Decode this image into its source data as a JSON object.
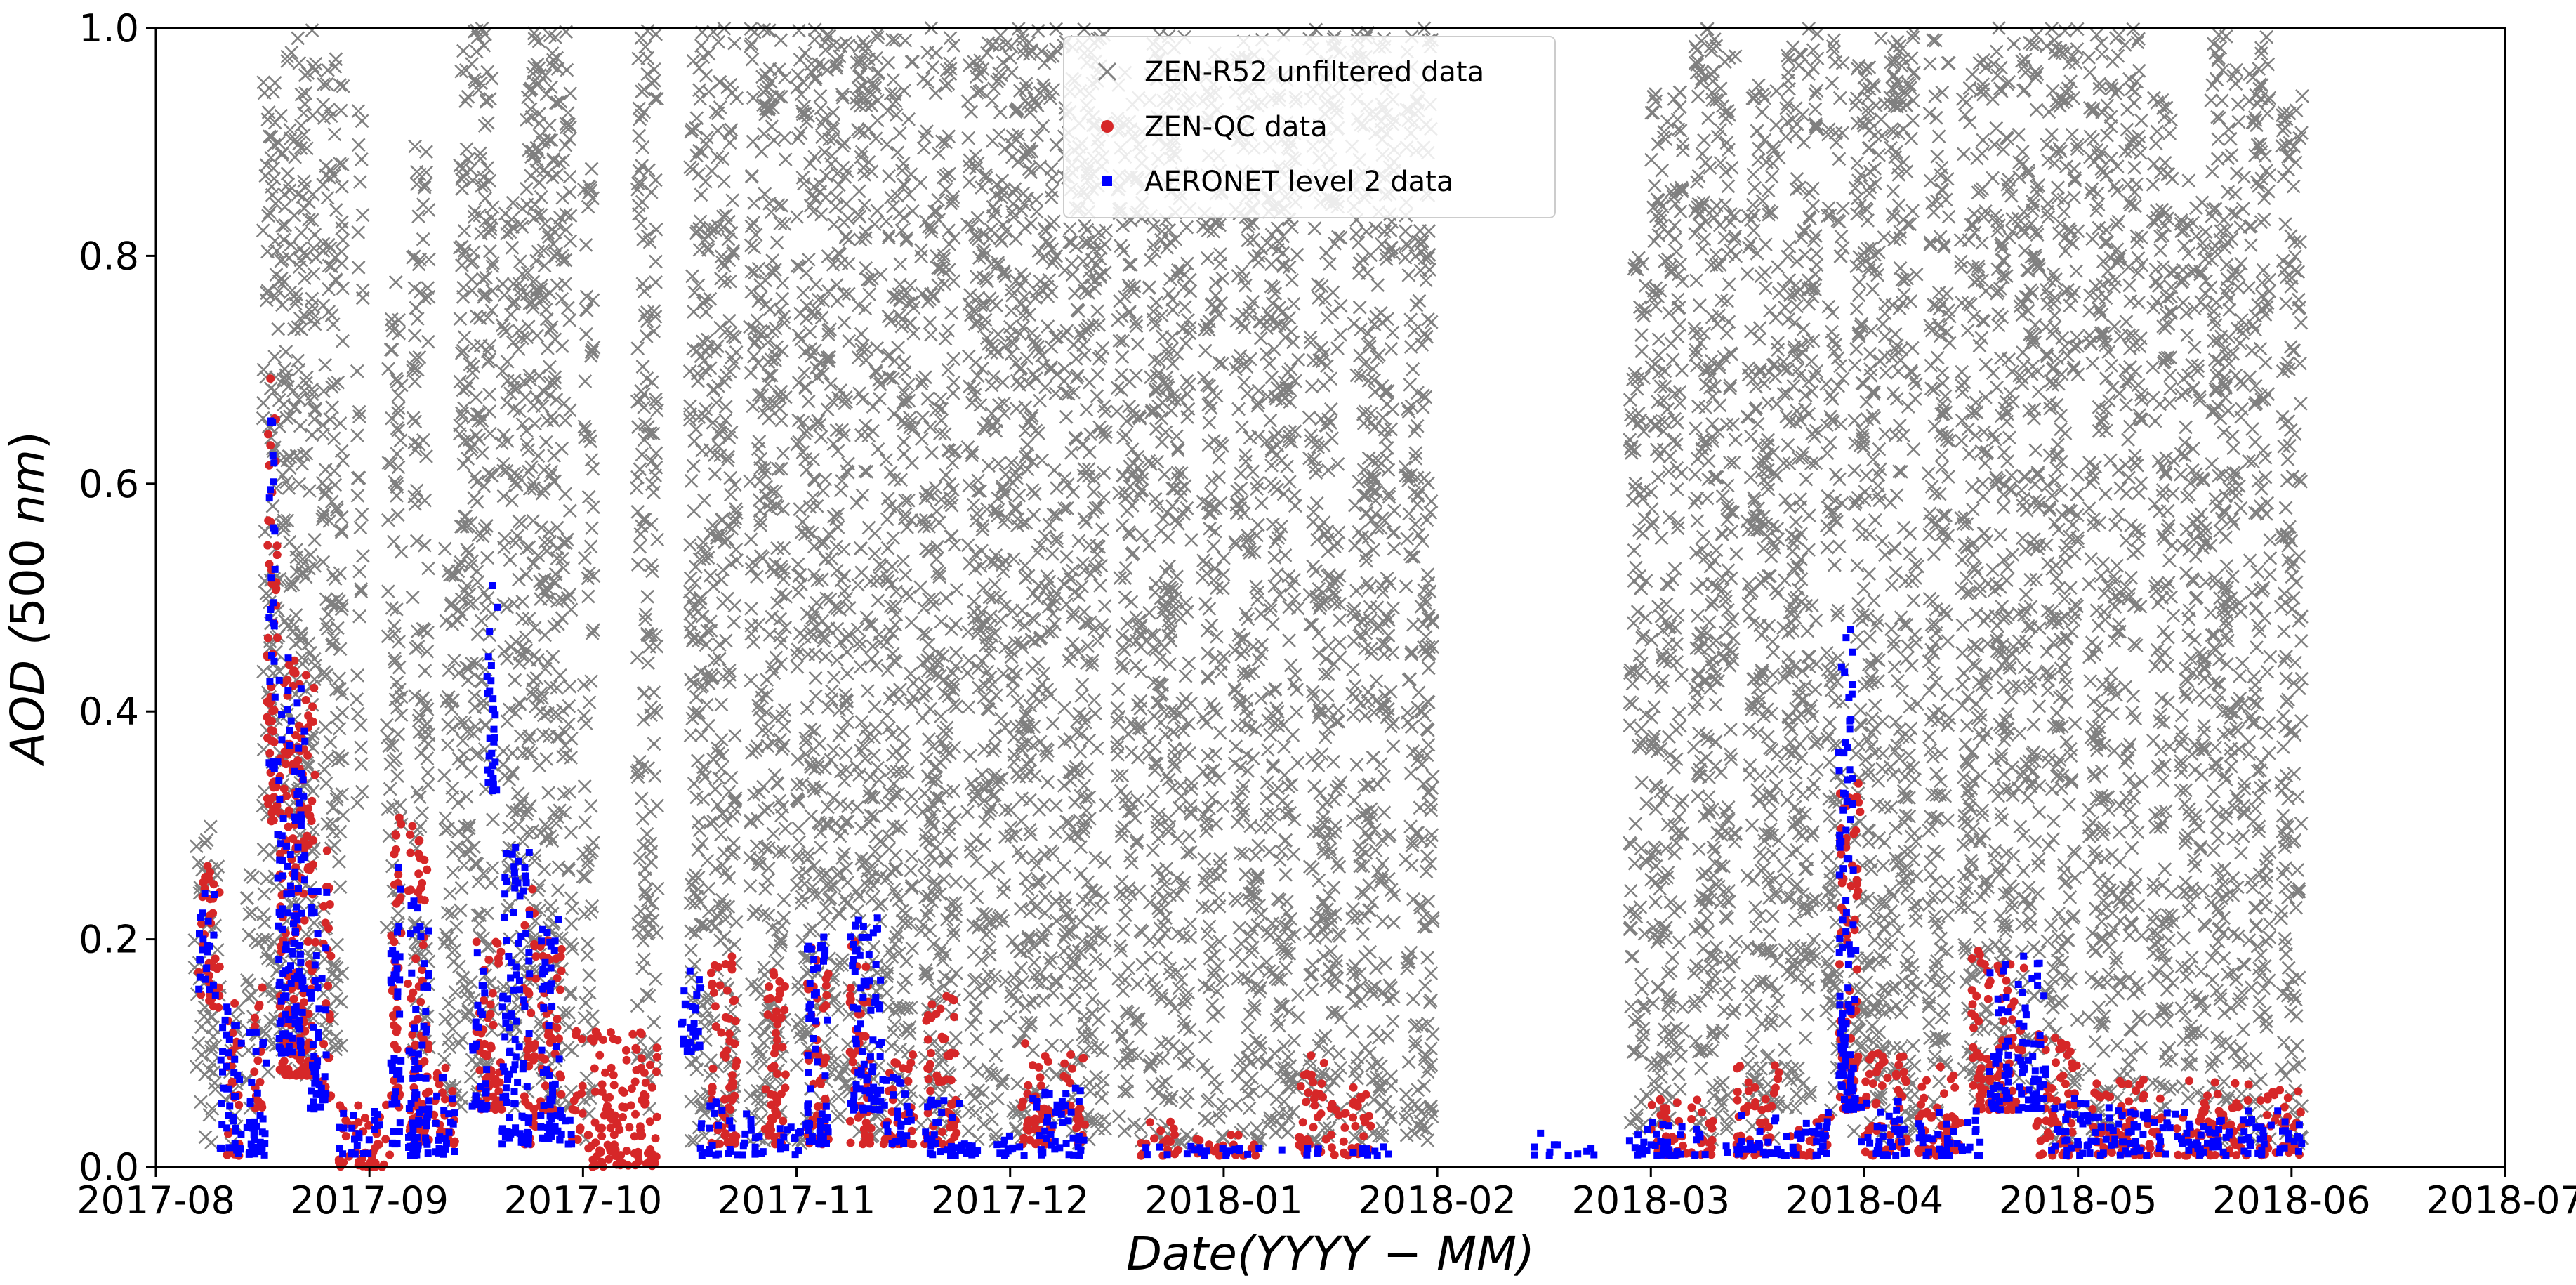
{
  "chart_data": {
    "type": "scatter",
    "title": "",
    "xlabel": "Date(YYYY − MM)",
    "ylabel": "AOD (500 nm)",
    "xlim": [
      "2017-08",
      "2018-07"
    ],
    "ylim": [
      0,
      1.0
    ],
    "x_tick_labels": [
      "2017-08",
      "2017-09",
      "2017-10",
      "2017-11",
      "2017-12",
      "2018-01",
      "2018-02",
      "2018-03",
      "2018-04",
      "2018-05",
      "2018-06",
      "2018-07"
    ],
    "y_tick_labels": [
      "0.0",
      "0.2",
      "0.4",
      "0.6",
      "0.8",
      "1.0"
    ],
    "grid": false,
    "legend_position": "top-center",
    "series": [
      {
        "name": "ZEN-R52 unfiltered data",
        "marker": "x",
        "color": "#808080",
        "note": "dense vertical bands per day; values given as [month_offset_start, month_offset_end, ymin, ymax]",
        "bands": [
          [
            0.18,
            0.3,
            0.02,
            0.3
          ],
          [
            0.33,
            0.4,
            0.02,
            0.14
          ],
          [
            0.42,
            0.48,
            0.05,
            0.26
          ],
          [
            0.5,
            0.58,
            0.08,
            0.96
          ],
          [
            0.58,
            0.75,
            0.08,
            1.0
          ],
          [
            0.78,
            0.88,
            0.1,
            1.0
          ],
          [
            0.94,
            0.97,
            0.3,
            0.93
          ],
          [
            1.08,
            1.15,
            0.2,
            0.8
          ],
          [
            1.2,
            1.28,
            0.1,
            0.9
          ],
          [
            1.35,
            1.42,
            0.05,
            0.55
          ],
          [
            1.42,
            1.58,
            0.05,
            1.0
          ],
          [
            1.62,
            1.72,
            0.05,
            0.85
          ],
          [
            1.73,
            1.95,
            0.05,
            1.0
          ],
          [
            2.0,
            2.05,
            0.02,
            0.88
          ],
          [
            2.25,
            2.35,
            0.05,
            1.0
          ],
          [
            2.5,
            2.72,
            0.02,
            1.0
          ],
          [
            2.78,
            2.95,
            0.02,
            1.0
          ],
          [
            3.0,
            3.25,
            0.02,
            1.0
          ],
          [
            3.28,
            3.4,
            0.02,
            1.0
          ],
          [
            3.42,
            3.55,
            0.05,
            1.0
          ],
          [
            3.58,
            3.75,
            0.02,
            1.0
          ],
          [
            3.8,
            3.98,
            0.02,
            1.0
          ],
          [
            4.0,
            4.22,
            0.02,
            1.0
          ],
          [
            4.25,
            4.45,
            0.02,
            1.0
          ],
          [
            4.5,
            4.62,
            0.02,
            1.0
          ],
          [
            4.65,
            4.85,
            0.02,
            1.0
          ],
          [
            4.9,
            5.0,
            0.02,
            1.0
          ],
          [
            5.05,
            5.18,
            0.02,
            1.0
          ],
          [
            5.2,
            5.35,
            0.02,
            1.0
          ],
          [
            5.4,
            5.55,
            0.02,
            1.0
          ],
          [
            5.6,
            5.8,
            0.02,
            1.0
          ],
          [
            5.85,
            5.98,
            0.02,
            1.0
          ],
          [
            6.9,
            6.98,
            0.02,
            0.8
          ],
          [
            7.0,
            7.15,
            0.02,
            0.95
          ],
          [
            7.2,
            7.4,
            0.02,
            1.0
          ],
          [
            7.45,
            7.6,
            0.02,
            0.95
          ],
          [
            7.62,
            7.78,
            0.05,
            1.0
          ],
          [
            7.82,
            7.9,
            0.05,
            1.0
          ],
          [
            7.95,
            8.1,
            0.02,
            1.0
          ],
          [
            8.12,
            8.25,
            0.02,
            1.0
          ],
          [
            8.3,
            8.4,
            0.02,
            1.0
          ],
          [
            8.45,
            8.58,
            0.05,
            0.98
          ],
          [
            8.6,
            8.7,
            0.05,
            1.0
          ],
          [
            8.72,
            8.82,
            0.05,
            1.0
          ],
          [
            8.85,
            9.0,
            0.02,
            1.0
          ],
          [
            9.05,
            9.2,
            0.02,
            1.0
          ],
          [
            9.22,
            9.3,
            0.05,
            1.0
          ],
          [
            9.35,
            9.45,
            0.05,
            0.95
          ],
          [
            9.48,
            9.6,
            0.05,
            0.9
          ],
          [
            9.62,
            9.78,
            0.02,
            1.0
          ],
          [
            9.8,
            9.9,
            0.02,
            1.0
          ],
          [
            9.95,
            10.05,
            0.02,
            0.95
          ]
        ]
      },
      {
        "name": "ZEN-QC data",
        "marker": "o",
        "color": "#d62728",
        "bands": [
          [
            0.2,
            0.3,
            0.14,
            0.27
          ],
          [
            0.33,
            0.4,
            0.01,
            0.15
          ],
          [
            0.45,
            0.5,
            0.05,
            0.17
          ],
          [
            0.52,
            0.57,
            0.3,
            0.7
          ],
          [
            0.58,
            0.62,
            0.08,
            0.45
          ],
          [
            0.62,
            0.75,
            0.08,
            0.46
          ],
          [
            0.78,
            0.82,
            0.06,
            0.28
          ],
          [
            0.85,
            1.1,
            0.0,
            0.06
          ],
          [
            1.1,
            1.15,
            0.05,
            0.31
          ],
          [
            1.18,
            1.28,
            0.02,
            0.3
          ],
          [
            1.3,
            1.4,
            0.02,
            0.1
          ],
          [
            1.5,
            1.62,
            0.05,
            0.2
          ],
          [
            1.72,
            1.78,
            0.02,
            0.25
          ],
          [
            1.8,
            1.9,
            0.05,
            0.2
          ],
          [
            1.95,
            2.0,
            0.02,
            0.12
          ],
          [
            2.02,
            2.35,
            0.0,
            0.12
          ],
          [
            2.6,
            2.72,
            0.02,
            0.2
          ],
          [
            2.85,
            2.95,
            0.02,
            0.18
          ],
          [
            3.05,
            3.15,
            0.02,
            0.2
          ],
          [
            3.25,
            3.35,
            0.02,
            0.2
          ],
          [
            3.4,
            3.55,
            0.02,
            0.1
          ],
          [
            3.6,
            3.75,
            0.02,
            0.15
          ],
          [
            4.05,
            4.2,
            0.02,
            0.12
          ],
          [
            4.25,
            4.35,
            0.02,
            0.1
          ],
          [
            4.6,
            4.8,
            0.01,
            0.04
          ],
          [
            4.85,
            5.15,
            0.01,
            0.03
          ],
          [
            5.35,
            5.48,
            0.01,
            0.1
          ],
          [
            5.5,
            5.7,
            0.01,
            0.07
          ],
          [
            7.0,
            7.3,
            0.01,
            0.06
          ],
          [
            7.4,
            7.6,
            0.01,
            0.09
          ],
          [
            7.65,
            7.85,
            0.01,
            0.05
          ],
          [
            7.88,
            7.98,
            0.05,
            0.34
          ],
          [
            8.0,
            8.2,
            0.01,
            0.1
          ],
          [
            8.25,
            8.45,
            0.01,
            0.09
          ],
          [
            8.5,
            8.6,
            0.05,
            0.19
          ],
          [
            8.62,
            8.75,
            0.05,
            0.18
          ],
          [
            8.8,
            9.0,
            0.01,
            0.12
          ],
          [
            9.05,
            9.4,
            0.01,
            0.08
          ],
          [
            9.45,
            9.8,
            0.01,
            0.08
          ],
          [
            9.85,
            10.05,
            0.01,
            0.07
          ]
        ]
      },
      {
        "name": "AERONET level 2 data",
        "marker": "s",
        "color": "#0000ff",
        "bands": [
          [
            0.2,
            0.28,
            0.15,
            0.24
          ],
          [
            0.3,
            0.4,
            0.01,
            0.15
          ],
          [
            0.42,
            0.52,
            0.01,
            0.12
          ],
          [
            0.53,
            0.56,
            0.35,
            0.66
          ],
          [
            0.57,
            0.62,
            0.1,
            0.45
          ],
          [
            0.62,
            0.7,
            0.1,
            0.42
          ],
          [
            0.72,
            0.8,
            0.05,
            0.25
          ],
          [
            0.85,
            1.05,
            0.01,
            0.05
          ],
          [
            1.1,
            1.15,
            0.02,
            0.28
          ],
          [
            1.18,
            1.28,
            0.01,
            0.24
          ],
          [
            1.3,
            1.4,
            0.01,
            0.08
          ],
          [
            1.48,
            1.55,
            0.05,
            0.2
          ],
          [
            1.55,
            1.6,
            0.33,
            0.52
          ],
          [
            1.62,
            1.75,
            0.02,
            0.29
          ],
          [
            1.8,
            1.9,
            0.02,
            0.22
          ],
          [
            1.9,
            1.96,
            0.02,
            0.05
          ],
          [
            2.45,
            2.55,
            0.1,
            0.19
          ],
          [
            2.55,
            2.7,
            0.01,
            0.06
          ],
          [
            2.72,
            2.85,
            0.01,
            0.05
          ],
          [
            2.9,
            3.05,
            0.01,
            0.04
          ],
          [
            3.05,
            3.15,
            0.02,
            0.21
          ],
          [
            3.25,
            3.4,
            0.05,
            0.22
          ],
          [
            3.4,
            3.55,
            0.02,
            0.08
          ],
          [
            3.6,
            3.85,
            0.01,
            0.06
          ],
          [
            3.9,
            4.1,
            0.01,
            0.03
          ],
          [
            4.1,
            4.35,
            0.01,
            0.07
          ],
          [
            4.6,
            5.0,
            0.01,
            0.02
          ],
          [
            5.0,
            5.45,
            0.01,
            0.02
          ],
          [
            5.5,
            5.8,
            0.01,
            0.02
          ],
          [
            6.45,
            6.55,
            0.01,
            0.03
          ],
          [
            6.55,
            6.75,
            0.01,
            0.02
          ],
          [
            6.9,
            7.4,
            0.01,
            0.04
          ],
          [
            7.4,
            7.85,
            0.01,
            0.05
          ],
          [
            7.88,
            7.96,
            0.05,
            0.48
          ],
          [
            7.96,
            8.2,
            0.01,
            0.06
          ],
          [
            8.25,
            8.55,
            0.01,
            0.05
          ],
          [
            8.58,
            8.68,
            0.05,
            0.18
          ],
          [
            8.72,
            8.85,
            0.05,
            0.19
          ],
          [
            8.85,
            9.3,
            0.01,
            0.06
          ],
          [
            9.3,
            9.8,
            0.01,
            0.05
          ],
          [
            9.8,
            10.05,
            0.01,
            0.05
          ]
        ]
      }
    ]
  }
}
